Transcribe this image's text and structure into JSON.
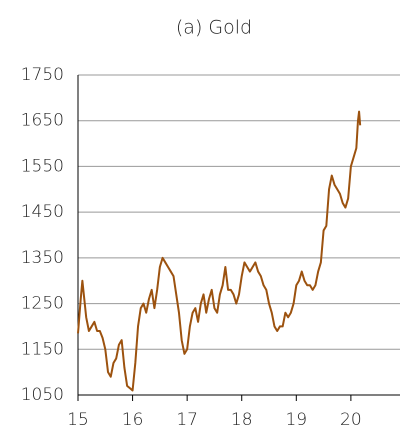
{
  "chart_data": {
    "type": "line",
    "title": "(a) Gold",
    "color": "#9c520f",
    "x": [
      15.0,
      15.05,
      15.08,
      15.15,
      15.2,
      15.25,
      15.3,
      15.35,
      15.4,
      15.45,
      15.5,
      15.55,
      15.6,
      15.65,
      15.7,
      15.75,
      15.8,
      15.85,
      15.9,
      15.95,
      16.0,
      16.05,
      16.1,
      16.15,
      16.2,
      16.25,
      16.3,
      16.35,
      16.4,
      16.45,
      16.5,
      16.55,
      16.6,
      16.65,
      16.7,
      16.75,
      16.8,
      16.85,
      16.9,
      16.95,
      17.0,
      17.05,
      17.1,
      17.15,
      17.2,
      17.25,
      17.3,
      17.35,
      17.4,
      17.45,
      17.5,
      17.55,
      17.6,
      17.65,
      17.7,
      17.75,
      17.8,
      17.85,
      17.9,
      17.95,
      18.0,
      18.05,
      18.1,
      18.15,
      18.2,
      18.25,
      18.3,
      18.35,
      18.4,
      18.45,
      18.5,
      18.55,
      18.6,
      18.65,
      18.7,
      18.75,
      18.8,
      18.85,
      18.9,
      18.95,
      19.0,
      19.05,
      19.1,
      19.15,
      19.2,
      19.25,
      19.3,
      19.35,
      19.4,
      19.45,
      19.5,
      19.55,
      19.6,
      19.65,
      19.7,
      19.75,
      19.8,
      19.85,
      19.9,
      19.95,
      20.0,
      20.05,
      20.1,
      20.13,
      20.15,
      20.17
    ],
    "values": [
      1185,
      1260,
      1300,
      1220,
      1190,
      1200,
      1210,
      1190,
      1190,
      1175,
      1150,
      1100,
      1090,
      1120,
      1130,
      1160,
      1170,
      1110,
      1070,
      1065,
      1060,
      1120,
      1200,
      1240,
      1250,
      1230,
      1260,
      1280,
      1240,
      1280,
      1330,
      1350,
      1340,
      1330,
      1320,
      1310,
      1270,
      1230,
      1170,
      1140,
      1150,
      1200,
      1230,
      1240,
      1210,
      1250,
      1270,
      1230,
      1260,
      1280,
      1240,
      1230,
      1270,
      1290,
      1330,
      1280,
      1280,
      1270,
      1250,
      1270,
      1310,
      1340,
      1330,
      1320,
      1330,
      1340,
      1320,
      1310,
      1290,
      1280,
      1250,
      1230,
      1200,
      1190,
      1200,
      1200,
      1230,
      1220,
      1230,
      1250,
      1290,
      1300,
      1320,
      1300,
      1290,
      1290,
      1280,
      1290,
      1320,
      1340,
      1410,
      1420,
      1500,
      1530,
      1510,
      1500,
      1490,
      1470,
      1460,
      1480,
      1550,
      1570,
      1590,
      1650,
      1670,
      1640
    ],
    "xlim": [
      15,
      20.9
    ],
    "xticks": [
      15,
      16,
      17,
      18,
      19,
      20
    ],
    "ylim": [
      1050,
      1750
    ],
    "yticks": [
      1050,
      1150,
      1250,
      1350,
      1450,
      1550,
      1650,
      1750
    ],
    "grid": true
  }
}
